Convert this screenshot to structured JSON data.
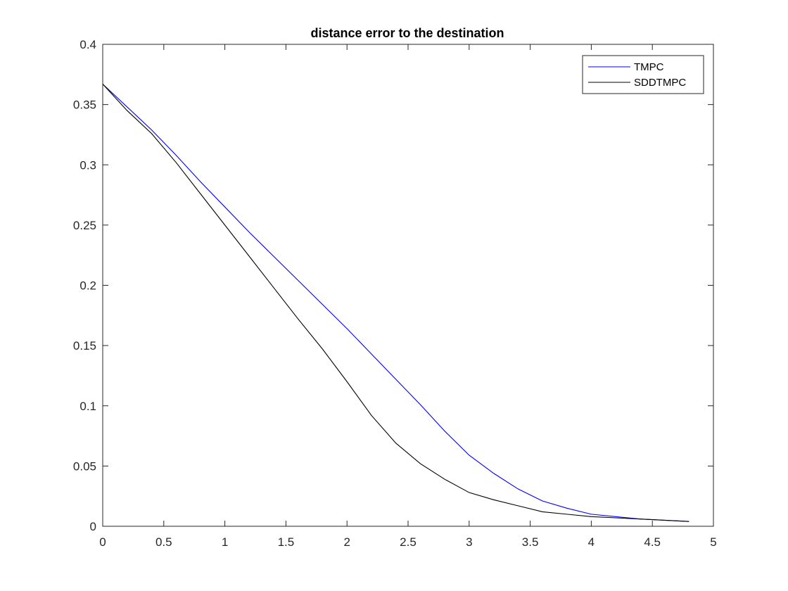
{
  "chart_data": {
    "type": "line",
    "title": "distance error to the destination",
    "xlabel": "",
    "ylabel": "",
    "xlim": [
      0,
      5
    ],
    "ylim": [
      0,
      0.4
    ],
    "xticks": [
      0,
      0.5,
      1,
      1.5,
      2,
      2.5,
      3,
      3.5,
      4,
      4.5,
      5
    ],
    "xtick_labels": [
      "0",
      "0.5",
      "1",
      "1.5",
      "2",
      "2.5",
      "3",
      "3.5",
      "4",
      "4.5",
      "5"
    ],
    "yticks": [
      0,
      0.05,
      0.1,
      0.15,
      0.2,
      0.25,
      0.3,
      0.35,
      0.4
    ],
    "ytick_labels": [
      "0",
      "0.05",
      "0.1",
      "0.15",
      "0.2",
      "0.25",
      "0.3",
      "0.35",
      "0.4"
    ],
    "grid": false,
    "legend_position": "top-right",
    "x": [
      0,
      0.2,
      0.4,
      0.6,
      0.8,
      1.0,
      1.2,
      1.4,
      1.6,
      1.8,
      2.0,
      2.2,
      2.4,
      2.6,
      2.8,
      3.0,
      3.2,
      3.4,
      3.6,
      3.8,
      4.0,
      4.2,
      4.4,
      4.6,
      4.8
    ],
    "series": [
      {
        "name": "TMPC",
        "color": "#0000ff",
        "values": [
          0.367,
          0.348,
          0.329,
          0.308,
          0.286,
          0.265,
          0.244,
          0.224,
          0.204,
          0.184,
          0.164,
          0.143,
          0.122,
          0.101,
          0.079,
          0.059,
          0.044,
          0.031,
          0.021,
          0.015,
          0.01,
          0.008,
          0.006,
          0.005,
          0.004
        ]
      },
      {
        "name": "SDDTMPC",
        "color": "#000000",
        "values": [
          0.367,
          0.345,
          0.326,
          0.302,
          0.276,
          0.25,
          0.224,
          0.198,
          0.172,
          0.147,
          0.12,
          0.092,
          0.069,
          0.052,
          0.039,
          0.028,
          0.022,
          0.017,
          0.012,
          0.01,
          0.008,
          0.007,
          0.006,
          0.005,
          0.004
        ]
      }
    ]
  }
}
